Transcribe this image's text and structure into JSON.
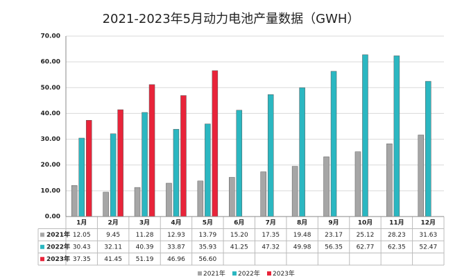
{
  "chart_data": {
    "type": "bar",
    "title": "2021-2023年5月动力电池产量数据（GWH）",
    "categories": [
      "1月",
      "2月",
      "3月",
      "4月",
      "5月",
      "6月",
      "7月",
      "8月",
      "9月",
      "10月",
      "11月",
      "12月"
    ],
    "series": [
      {
        "name": "2021年",
        "color": "#a6a6a6",
        "values": [
          12.05,
          9.45,
          11.28,
          12.93,
          13.79,
          15.2,
          17.35,
          19.48,
          23.17,
          25.12,
          28.23,
          31.63
        ],
        "value_labels": [
          "12.05",
          "9.45",
          "11.28",
          "12.93",
          "13.79",
          "15.20",
          "17.35",
          "19.48",
          "23.17",
          "25.12",
          "28.23",
          "31.63"
        ]
      },
      {
        "name": "2022年",
        "color": "#2bb7c1",
        "values": [
          30.43,
          32.11,
          40.39,
          33.87,
          35.93,
          41.25,
          47.32,
          49.98,
          56.35,
          62.77,
          62.35,
          52.47
        ],
        "value_labels": [
          "30.43",
          "32.11",
          "40.39",
          "33.87",
          "35.93",
          "41.25",
          "47.32",
          "49.98",
          "56.35",
          "62.77",
          "62.35",
          "52.47"
        ]
      },
      {
        "name": "2023年",
        "color": "#e8243a",
        "values": [
          37.35,
          41.45,
          51.19,
          46.96,
          56.6,
          null,
          null,
          null,
          null,
          null,
          null,
          null
        ],
        "value_labels": [
          "37.35",
          "41.45",
          "51.19",
          "46.96",
          "56.60",
          null,
          null,
          null,
          null,
          null,
          null,
          null
        ]
      }
    ],
    "ylim": [
      0,
      70
    ],
    "yticks": [
      {
        "value": 0,
        "label": "0.00"
      },
      {
        "value": 10,
        "label": "10.00"
      },
      {
        "value": 20,
        "label": "20.00"
      },
      {
        "value": 30,
        "label": "30.00"
      },
      {
        "value": 40,
        "label": "40.00"
      },
      {
        "value": 50,
        "label": "50.00"
      },
      {
        "value": 60,
        "label": "60.00"
      },
      {
        "value": 70,
        "label": "70.00"
      }
    ],
    "grid": true
  }
}
